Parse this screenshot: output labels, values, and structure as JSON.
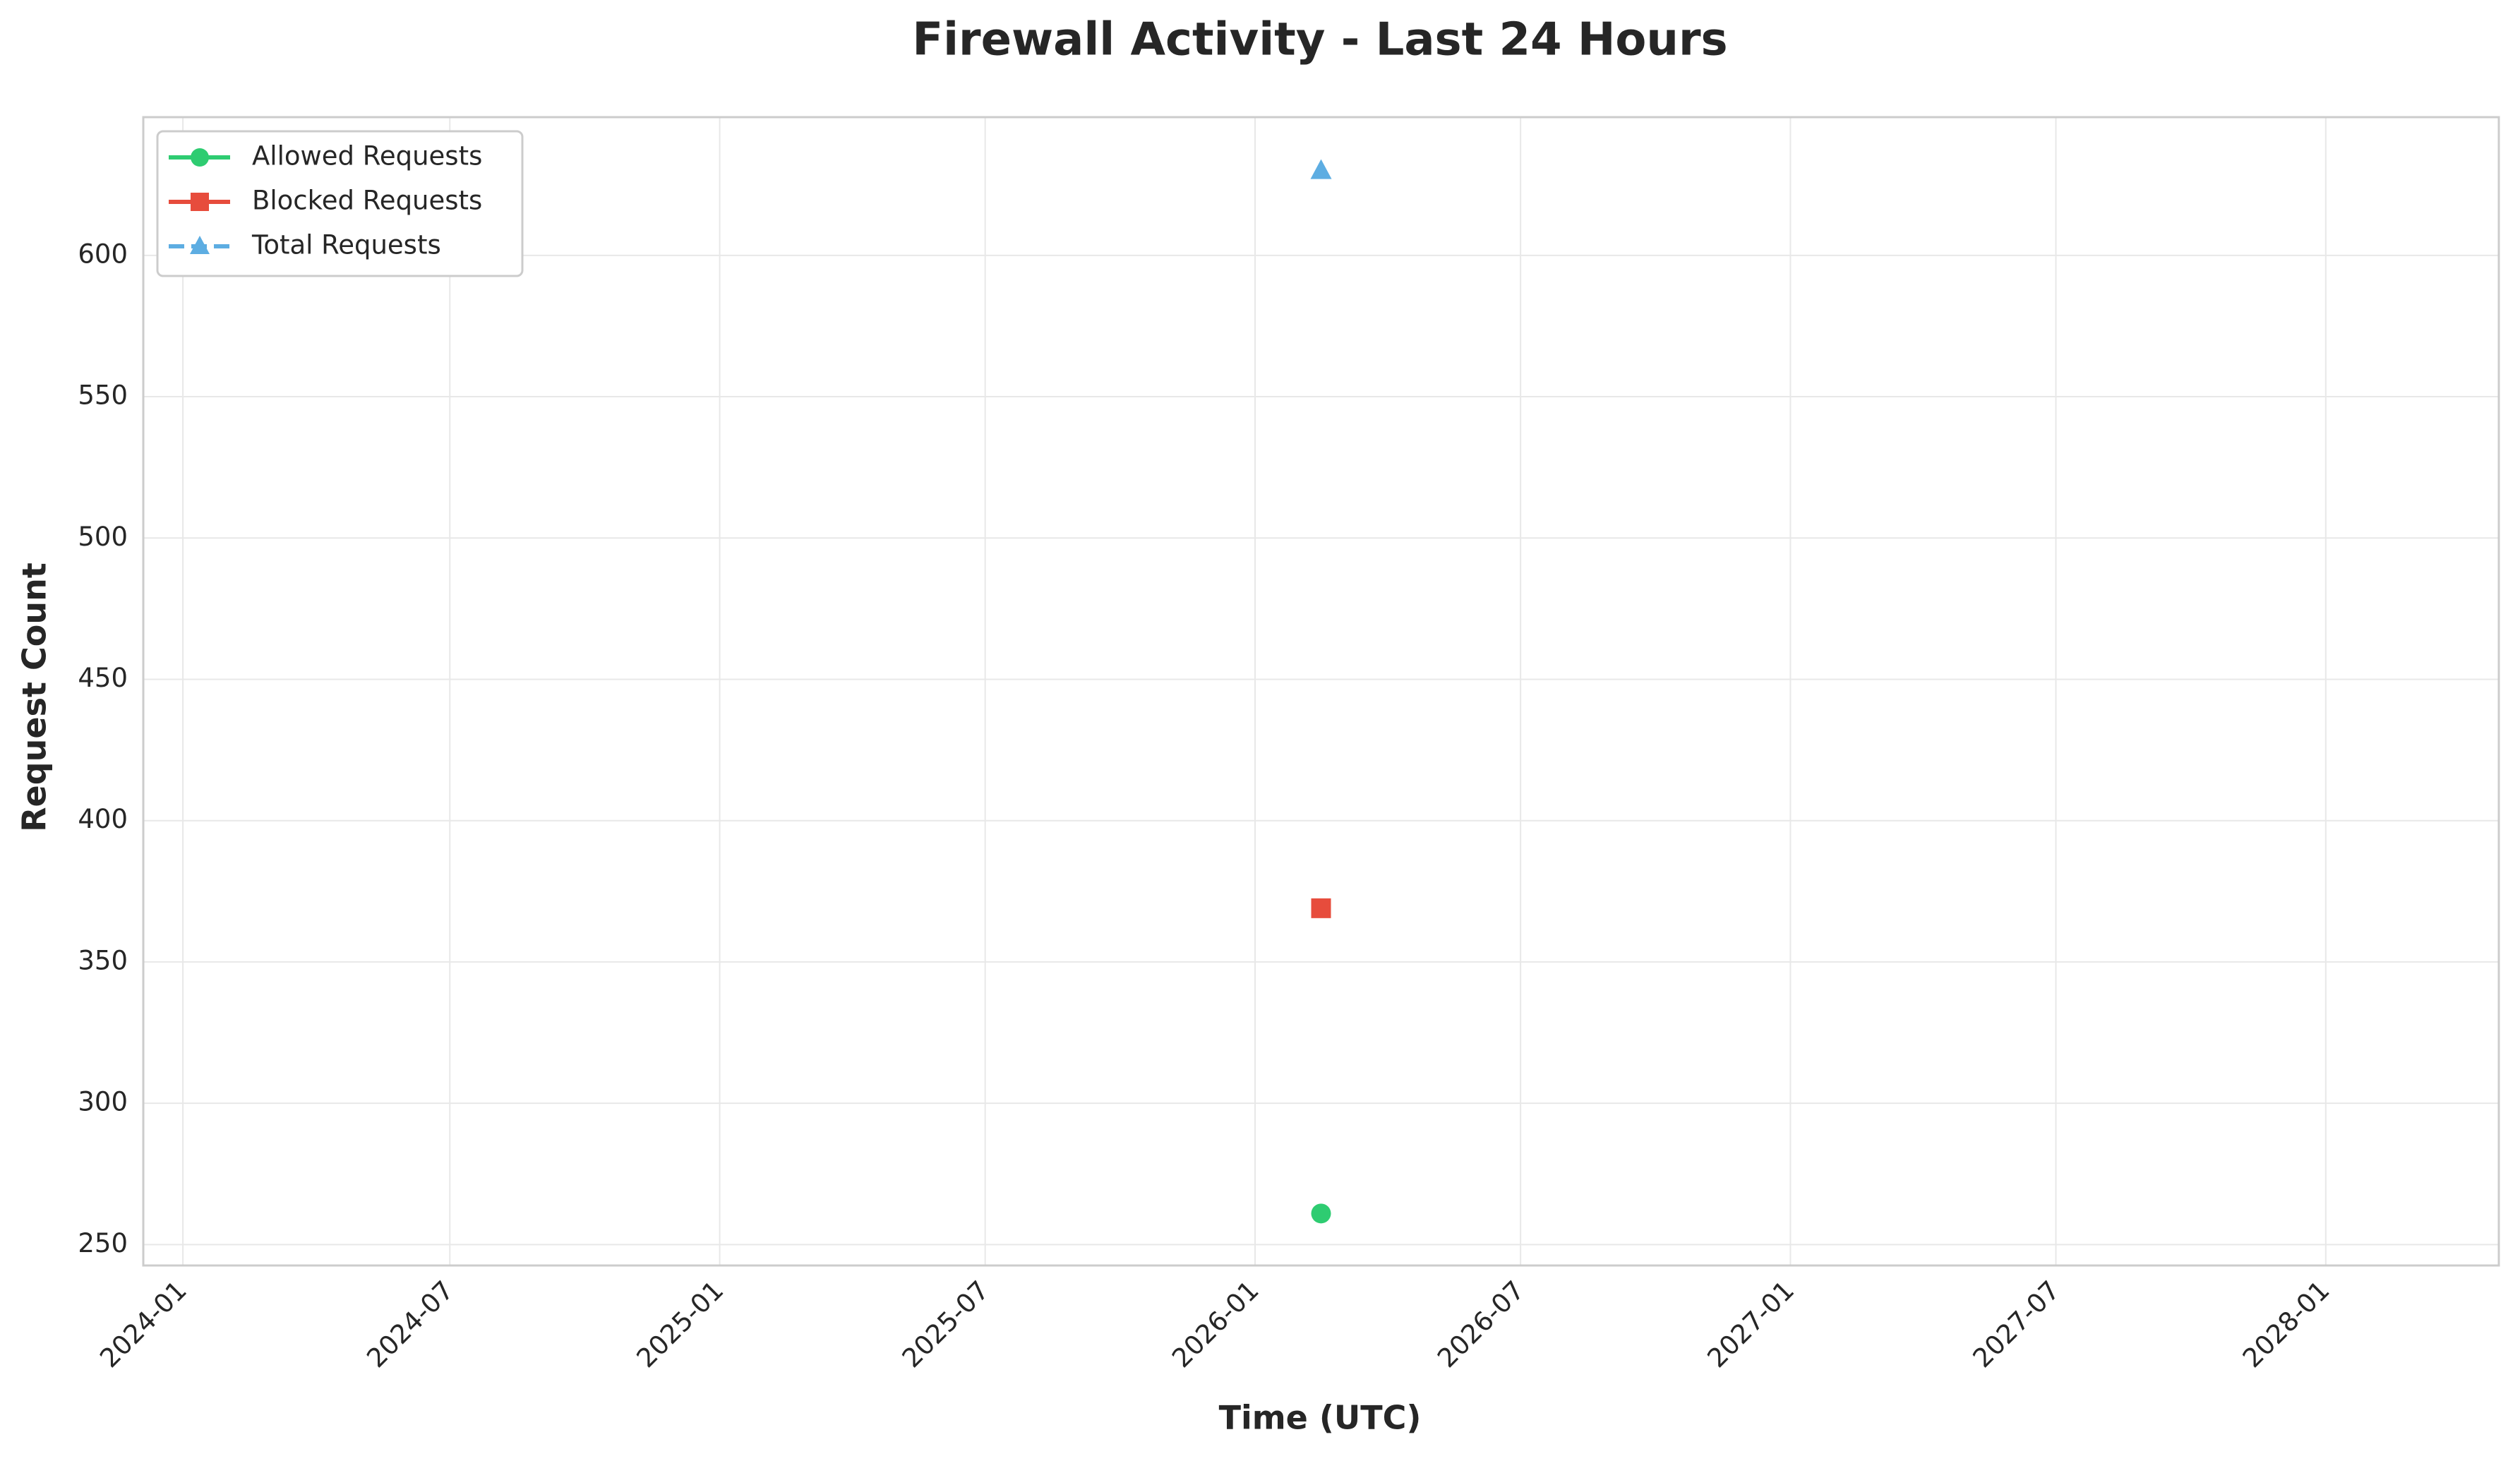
{
  "chart_data": {
    "type": "line",
    "title": "Firewall Activity - Last 24 Hours",
    "x_label": "Time (UTC)",
    "y_label": "Request Count",
    "x": [
      "2026-02-15"
    ],
    "series": [
      {
        "name": "Allowed Requests",
        "color": "#2ecc71",
        "marker": "circle",
        "dash": "solid",
        "values": [
          261
        ]
      },
      {
        "name": "Blocked Requests",
        "color": "#e74c3c",
        "marker": "square",
        "dash": "solid",
        "values": [
          369
        ]
      },
      {
        "name": "Total Requests",
        "color": "#5dade2",
        "marker": "triangle",
        "dash": "dashed",
        "values": [
          630
        ]
      }
    ],
    "xlim": [
      "2023-12-05",
      "2028-04-28"
    ],
    "xticks": [
      "2024-01",
      "2024-07",
      "2025-01",
      "2025-07",
      "2026-01",
      "2026-07",
      "2027-01",
      "2027-07",
      "2028-01"
    ],
    "ylim": [
      242.6,
      648.9
    ],
    "yticks": [
      250,
      300,
      350,
      400,
      450,
      500,
      550,
      600
    ],
    "grid": true,
    "legend_loc": "upper left"
  }
}
